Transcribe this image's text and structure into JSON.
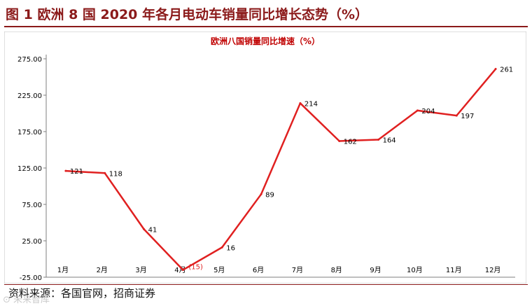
{
  "figure": {
    "title": "图 1  欧洲 8 国 2020 年各月电动车销量同比增长态势（%）",
    "source": "资料来源：各国官网，招商证券",
    "watermark": "未来智库"
  },
  "colors": {
    "series": "#E02020",
    "accent": "#8B1A1A",
    "axis": "#000000",
    "plot_border": "#7f7f7f"
  },
  "chart_data": {
    "type": "line",
    "title": "欧洲八国销量同比增速（%）",
    "xlabel": "",
    "ylabel": "",
    "categories": [
      "1月",
      "2月",
      "3月",
      "4月",
      "5月",
      "6月",
      "7月",
      "8月",
      "9月",
      "10月",
      "11月",
      "12月"
    ],
    "series": [
      {
        "values": [
          121,
          118,
          41,
          -15,
          16,
          89,
          214,
          162,
          164,
          204,
          197,
          261
        ],
        "labels": [
          "121",
          "118",
          "41",
          "(15)",
          "16",
          "89",
          "214",
          "162",
          "164",
          "204",
          "197",
          "261"
        ]
      }
    ],
    "yticks": [
      "-25.00",
      "25.00",
      "75.00",
      "125.00",
      "175.00",
      "225.00",
      "275.00"
    ],
    "ylim": [
      -25,
      275
    ],
    "grid": false,
    "legend": "none"
  }
}
